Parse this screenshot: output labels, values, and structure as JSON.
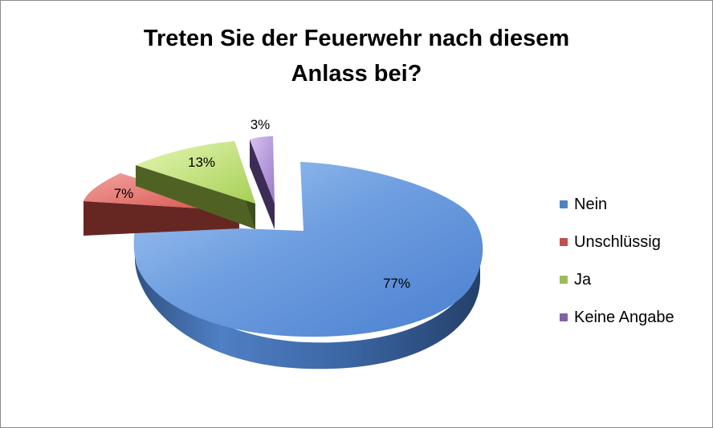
{
  "chart_data": {
    "type": "pie",
    "title": "Treten Sie der Feuerwehr nach diesem Anlass bei?",
    "title_lines": [
      "Treten Sie der Feuerwehr nach diesem",
      "Anlass bei?"
    ],
    "three_d": true,
    "exploded": true,
    "legend_position": "right",
    "categories": [
      "Nein",
      "Unschlüssig",
      "Ja",
      "Keine Angabe"
    ],
    "values": [
      77,
      7,
      13,
      3
    ],
    "data_labels": [
      "77%",
      "7%",
      "13%",
      "3%"
    ],
    "colors": [
      "#4f81bd",
      "#c0504d",
      "#9bbb59",
      "#8064a2"
    ]
  }
}
